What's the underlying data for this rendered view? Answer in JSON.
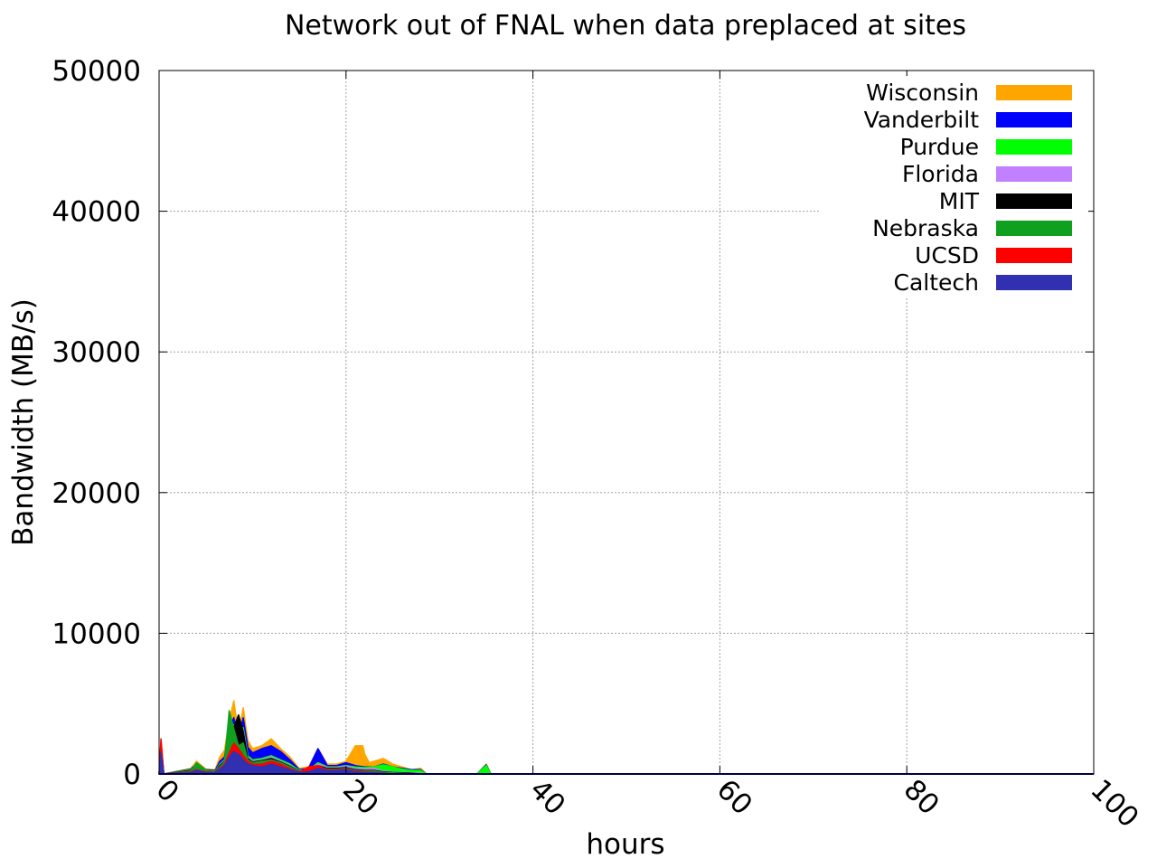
{
  "chart_data": {
    "type": "area",
    "title": "Network out of FNAL when data preplaced at sites",
    "xlabel": "hours",
    "ylabel": "Bandwidth (MB/s)",
    "xlim": [
      0,
      100
    ],
    "ylim": [
      0,
      50000
    ],
    "xticks": [
      0,
      20,
      40,
      60,
      80,
      100
    ],
    "yticks": [
      0,
      10000,
      20000,
      30000,
      40000,
      50000
    ],
    "xtick_labels": [
      "0",
      "20",
      "40",
      "60",
      "80",
      "100"
    ],
    "ytick_labels": [
      "0",
      "10000",
      "20000",
      "30000",
      "40000",
      "50000"
    ],
    "grid": true,
    "legend_position": "top-right",
    "stacking": "cumulative; listed top-down from Wisconsin (total) to Caltech (bottom layer)",
    "series": [
      {
        "name": "Wisconsin",
        "color": "#ffa500",
        "points": [
          [
            0,
            0
          ],
          [
            0.2,
            2400
          ],
          [
            0.5,
            0
          ],
          [
            3.4,
            400
          ],
          [
            4,
            900
          ],
          [
            5,
            350
          ],
          [
            6,
            300
          ],
          [
            6.5,
            1200
          ],
          [
            7,
            1700
          ],
          [
            7.5,
            3800
          ],
          [
            8,
            5200
          ],
          [
            8.5,
            2800
          ],
          [
            9,
            4700
          ],
          [
            9.5,
            2400
          ],
          [
            10,
            1800
          ],
          [
            11,
            2000
          ],
          [
            12,
            2500
          ],
          [
            13,
            1800
          ],
          [
            14,
            1200
          ],
          [
            15,
            400
          ],
          [
            16,
            500
          ],
          [
            17,
            1800
          ],
          [
            18,
            700
          ],
          [
            19,
            700
          ],
          [
            20,
            900
          ],
          [
            21,
            2000
          ],
          [
            21.8,
            2000
          ],
          [
            22,
            1400
          ],
          [
            22.5,
            800
          ],
          [
            23,
            900
          ],
          [
            24,
            1100
          ],
          [
            25,
            700
          ],
          [
            26,
            500
          ],
          [
            27,
            300
          ],
          [
            28,
            400
          ],
          [
            28.6,
            0
          ],
          [
            34,
            0
          ],
          [
            35,
            700
          ],
          [
            35.5,
            0
          ]
        ]
      },
      {
        "name": "Vanderbilt",
        "color": "#0000ff",
        "points": [
          [
            0,
            0
          ],
          [
            0.2,
            2200
          ],
          [
            0.5,
            0
          ],
          [
            3.4,
            350
          ],
          [
            4,
            700
          ],
          [
            5,
            300
          ],
          [
            6,
            250
          ],
          [
            6.5,
            900
          ],
          [
            7,
            1200
          ],
          [
            7.5,
            3300
          ],
          [
            8,
            4000
          ],
          [
            8.5,
            2500
          ],
          [
            9,
            4000
          ],
          [
            9.5,
            1900
          ],
          [
            10,
            1500
          ],
          [
            11,
            1800
          ],
          [
            12,
            2000
          ],
          [
            13,
            1600
          ],
          [
            14,
            1000
          ],
          [
            15,
            300
          ],
          [
            16,
            400
          ],
          [
            17,
            1800
          ],
          [
            18,
            600
          ],
          [
            19,
            600
          ],
          [
            20,
            800
          ],
          [
            21,
            600
          ],
          [
            22,
            500
          ],
          [
            23,
            500
          ],
          [
            24,
            700
          ],
          [
            25,
            500
          ],
          [
            26,
            400
          ],
          [
            27,
            300
          ],
          [
            28,
            300
          ],
          [
            28.6,
            0
          ],
          [
            34,
            0
          ],
          [
            35,
            650
          ],
          [
            35.5,
            0
          ]
        ]
      },
      {
        "name": "Purdue",
        "color": "#00ff00",
        "points": [
          [
            0,
            0
          ],
          [
            0.2,
            2100
          ],
          [
            0.5,
            0
          ],
          [
            3.4,
            300
          ],
          [
            4,
            600
          ],
          [
            5,
            250
          ],
          [
            6,
            200
          ],
          [
            6.5,
            700
          ],
          [
            7,
            1000
          ],
          [
            7.5,
            2800
          ],
          [
            8,
            3500
          ],
          [
            8.5,
            2000
          ],
          [
            9,
            3300
          ],
          [
            9.5,
            1300
          ],
          [
            10,
            1000
          ],
          [
            11,
            1100
          ],
          [
            12,
            1300
          ],
          [
            13,
            1000
          ],
          [
            14,
            700
          ],
          [
            15,
            250
          ],
          [
            16,
            300
          ],
          [
            17,
            800
          ],
          [
            18,
            500
          ],
          [
            19,
            500
          ],
          [
            20,
            600
          ],
          [
            21,
            500
          ],
          [
            22,
            450
          ],
          [
            23,
            500
          ],
          [
            24,
            650
          ],
          [
            25,
            500
          ],
          [
            26,
            350
          ],
          [
            27,
            250
          ],
          [
            28,
            250
          ],
          [
            28.6,
            0
          ],
          [
            34,
            0
          ],
          [
            35,
            600
          ],
          [
            35.5,
            0
          ]
        ]
      },
      {
        "name": "Florida",
        "color": "#c080ff",
        "points": [
          [
            0,
            0
          ],
          [
            0.2,
            2000
          ],
          [
            0.5,
            0
          ],
          [
            3.4,
            250
          ],
          [
            4,
            550
          ],
          [
            5,
            200
          ],
          [
            6,
            180
          ],
          [
            6.5,
            650
          ],
          [
            7,
            950
          ],
          [
            7.5,
            2700
          ],
          [
            8,
            3400
          ],
          [
            8.5,
            1900
          ],
          [
            9,
            3100
          ],
          [
            9.5,
            1200
          ],
          [
            10,
            900
          ],
          [
            11,
            1000
          ],
          [
            12,
            1200
          ],
          [
            13,
            900
          ],
          [
            14,
            600
          ],
          [
            15,
            200
          ],
          [
            16,
            250
          ],
          [
            17,
            700
          ],
          [
            18,
            450
          ],
          [
            19,
            450
          ],
          [
            20,
            550
          ],
          [
            21,
            400
          ],
          [
            22,
            350
          ],
          [
            23,
            400
          ],
          [
            24,
            200
          ],
          [
            25,
            150
          ],
          [
            26,
            100
          ],
          [
            27,
            80
          ],
          [
            28,
            50
          ],
          [
            28.6,
            0
          ],
          [
            34,
            0
          ],
          [
            35,
            0
          ]
        ]
      },
      {
        "name": "MIT",
        "color": "#000000",
        "points": [
          [
            0,
            0
          ],
          [
            0.2,
            1900
          ],
          [
            0.5,
            0
          ],
          [
            3.4,
            250
          ],
          [
            4,
            500
          ],
          [
            5,
            200
          ],
          [
            6,
            170
          ],
          [
            6.5,
            600
          ],
          [
            7,
            900
          ],
          [
            7.5,
            2600
          ],
          [
            8,
            3300
          ],
          [
            8.5,
            4200
          ],
          [
            9,
            3000
          ],
          [
            9.5,
            1100
          ],
          [
            10,
            850
          ],
          [
            11,
            950
          ],
          [
            12,
            1100
          ],
          [
            13,
            850
          ],
          [
            14,
            550
          ],
          [
            15,
            180
          ],
          [
            16,
            220
          ],
          [
            17,
            600
          ],
          [
            18,
            400
          ],
          [
            19,
            400
          ],
          [
            20,
            450
          ],
          [
            21,
            300
          ],
          [
            22,
            250
          ],
          [
            23,
            250
          ],
          [
            24,
            150
          ],
          [
            25,
            100
          ],
          [
            26,
            80
          ],
          [
            27,
            50
          ],
          [
            28,
            0
          ],
          [
            34,
            0
          ]
        ]
      },
      {
        "name": "Nebraska",
        "color": "#10a020",
        "points": [
          [
            0,
            0
          ],
          [
            0.2,
            1800
          ],
          [
            0.5,
            0
          ],
          [
            3.4,
            200
          ],
          [
            4,
            800
          ],
          [
            5,
            300
          ],
          [
            6,
            150
          ],
          [
            6.5,
            500
          ],
          [
            7,
            850
          ],
          [
            7.5,
            4500
          ],
          [
            8,
            3200
          ],
          [
            8.5,
            2000
          ],
          [
            9,
            2200
          ],
          [
            9.5,
            1000
          ],
          [
            10,
            800
          ],
          [
            11,
            900
          ],
          [
            12,
            1000
          ],
          [
            13,
            800
          ],
          [
            14,
            500
          ],
          [
            15,
            150
          ],
          [
            16,
            200
          ],
          [
            17,
            500
          ],
          [
            18,
            350
          ],
          [
            19,
            350
          ],
          [
            20,
            400
          ],
          [
            21,
            250
          ],
          [
            22,
            200
          ],
          [
            23,
            200
          ],
          [
            24,
            100
          ],
          [
            25,
            80
          ],
          [
            26,
            50
          ],
          [
            27,
            0
          ],
          [
            34,
            0
          ]
        ]
      },
      {
        "name": "UCSD",
        "color": "#ff0000",
        "points": [
          [
            0,
            0
          ],
          [
            0.2,
            2500
          ],
          [
            0.5,
            0
          ],
          [
            3.4,
            150
          ],
          [
            4,
            300
          ],
          [
            5,
            150
          ],
          [
            6,
            120
          ],
          [
            6.5,
            400
          ],
          [
            7,
            700
          ],
          [
            7.5,
            1500
          ],
          [
            8,
            2200
          ],
          [
            8.5,
            1800
          ],
          [
            9,
            1300
          ],
          [
            9.5,
            900
          ],
          [
            10,
            700
          ],
          [
            11,
            700
          ],
          [
            12,
            900
          ],
          [
            13,
            700
          ],
          [
            14,
            400
          ],
          [
            15,
            120
          ],
          [
            16,
            500
          ],
          [
            17,
            600
          ],
          [
            18,
            300
          ],
          [
            19,
            300
          ],
          [
            20,
            350
          ],
          [
            21,
            200
          ],
          [
            22,
            150
          ],
          [
            23,
            100
          ],
          [
            24,
            50
          ],
          [
            25,
            0
          ],
          [
            34,
            0
          ]
        ]
      },
      {
        "name": "Caltech",
        "color": "#3030b0",
        "points": [
          [
            0,
            0
          ],
          [
            0.2,
            1500
          ],
          [
            0.5,
            0
          ],
          [
            3.4,
            100
          ],
          [
            4,
            250
          ],
          [
            5,
            100
          ],
          [
            6,
            100
          ],
          [
            6.5,
            350
          ],
          [
            7,
            600
          ],
          [
            7.5,
            1200
          ],
          [
            8,
            1600
          ],
          [
            8.5,
            1400
          ],
          [
            9,
            1000
          ],
          [
            9.5,
            700
          ],
          [
            10,
            600
          ],
          [
            11,
            500
          ],
          [
            12,
            700
          ],
          [
            13,
            500
          ],
          [
            14,
            300
          ],
          [
            15,
            100
          ],
          [
            16,
            150
          ],
          [
            17,
            400
          ],
          [
            18,
            250
          ],
          [
            19,
            250
          ],
          [
            20,
            300
          ],
          [
            21,
            150
          ],
          [
            22,
            100
          ],
          [
            23,
            80
          ],
          [
            24,
            40
          ],
          [
            25,
            0
          ],
          [
            34,
            0
          ]
        ]
      }
    ]
  }
}
